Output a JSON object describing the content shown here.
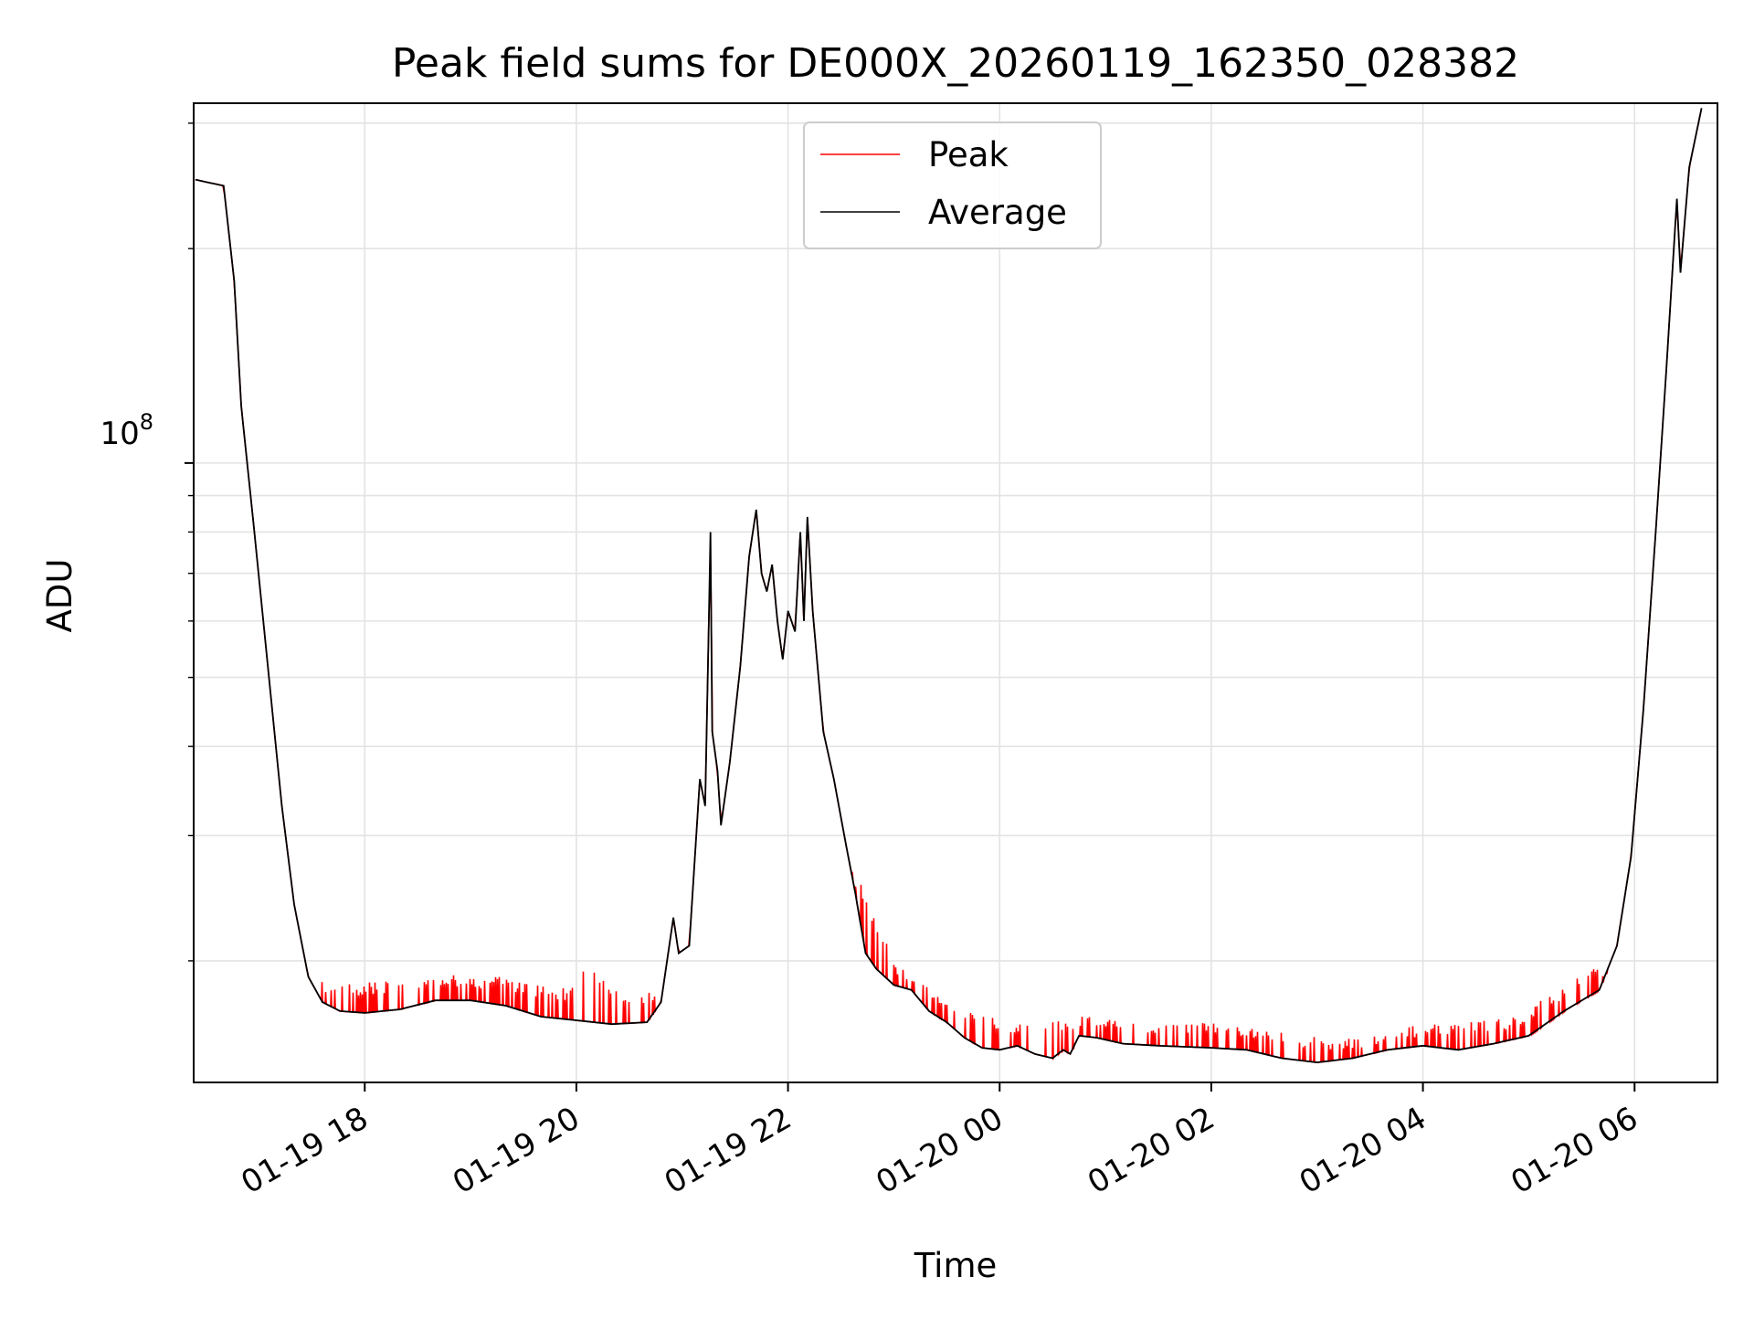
{
  "chart_data": {
    "type": "line",
    "title": "Peak field sums for DE000X_20260119_162350_028382",
    "xlabel": "Time",
    "ylabel": "ADU",
    "y_scale": "log",
    "ylim": [
      13500000,
      320000000
    ],
    "xlim": [
      "2026-01-19 16:23",
      "2026-01-20 06:47"
    ],
    "grid": true,
    "legend_position": "top-center",
    "x_ticks": [
      "2026-01-19 18:00",
      "2026-01-19 20:00",
      "2026-01-19 22:00",
      "2026-01-20 00:00",
      "2026-01-20 02:00",
      "2026-01-20 04:00",
      "2026-01-20 06:00"
    ],
    "x_tick_labels": [
      "01-19 18",
      "01-19 20",
      "01-19 22",
      "01-20 00",
      "01-20 02",
      "01-20 04",
      "01-20 06"
    ],
    "y_tick_label_base": "10",
    "y_tick_label_exp": "8",
    "series": [
      {
        "name": "Average",
        "color": "#000000",
        "points": [
          [
            "2026-01-19 16:24",
            250000000
          ],
          [
            "2026-01-19 16:30",
            248000000
          ],
          [
            "2026-01-19 16:37",
            246000000
          ],
          [
            "2026-01-19 16:40",
            245000000
          ],
          [
            "2026-01-19 16:46",
            180000000
          ],
          [
            "2026-01-19 16:50",
            120000000
          ],
          [
            "2026-01-19 16:57",
            82000000
          ],
          [
            "2026-01-19 17:05",
            52000000
          ],
          [
            "2026-01-19 17:13",
            33000000
          ],
          [
            "2026-01-19 17:20",
            24000000
          ],
          [
            "2026-01-19 17:28",
            19000000
          ],
          [
            "2026-01-19 17:36",
            17500000
          ],
          [
            "2026-01-19 17:46",
            17000000
          ],
          [
            "2026-01-19 18:00",
            16900000
          ],
          [
            "2026-01-19 18:20",
            17100000
          ],
          [
            "2026-01-19 18:40",
            17600000
          ],
          [
            "2026-01-19 19:00",
            17600000
          ],
          [
            "2026-01-19 19:20",
            17300000
          ],
          [
            "2026-01-19 19:40",
            16700000
          ],
          [
            "2026-01-19 20:00",
            16500000
          ],
          [
            "2026-01-19 20:20",
            16300000
          ],
          [
            "2026-01-19 20:40",
            16400000
          ],
          [
            "2026-01-19 20:48",
            17500000
          ],
          [
            "2026-01-19 20:55",
            23000000
          ],
          [
            "2026-01-19 20:58",
            20500000
          ],
          [
            "2026-01-19 21:04",
            21000000
          ],
          [
            "2026-01-19 21:10",
            36000000
          ],
          [
            "2026-01-19 21:13",
            33000000
          ],
          [
            "2026-01-19 21:15",
            58000000
          ],
          [
            "2026-01-19 21:16",
            80000000
          ],
          [
            "2026-01-19 21:17",
            42000000
          ],
          [
            "2026-01-19 21:20",
            37000000
          ],
          [
            "2026-01-19 21:22",
            31000000
          ],
          [
            "2026-01-19 21:27",
            38000000
          ],
          [
            "2026-01-19 21:33",
            52000000
          ],
          [
            "2026-01-19 21:38",
            74000000
          ],
          [
            "2026-01-19 21:42",
            86000000
          ],
          [
            "2026-01-19 21:45",
            70000000
          ],
          [
            "2026-01-19 21:48",
            66000000
          ],
          [
            "2026-01-19 21:51",
            72000000
          ],
          [
            "2026-01-19 21:54",
            60000000
          ],
          [
            "2026-01-19 21:57",
            53000000
          ],
          [
            "2026-01-19 22:00",
            62000000
          ],
          [
            "2026-01-19 22:04",
            58000000
          ],
          [
            "2026-01-19 22:07",
            80000000
          ],
          [
            "2026-01-19 22:09",
            60000000
          ],
          [
            "2026-01-19 22:11",
            84000000
          ],
          [
            "2026-01-19 22:14",
            62000000
          ],
          [
            "2026-01-19 22:20",
            42000000
          ],
          [
            "2026-01-19 22:26",
            36000000
          ],
          [
            "2026-01-19 22:33",
            29000000
          ],
          [
            "2026-01-19 22:38",
            25000000
          ],
          [
            "2026-01-19 22:44",
            20500000
          ],
          [
            "2026-01-19 22:50",
            19500000
          ],
          [
            "2026-01-19 23:00",
            18500000
          ],
          [
            "2026-01-19 23:10",
            18200000
          ],
          [
            "2026-01-19 23:20",
            17000000
          ],
          [
            "2026-01-19 23:30",
            16400000
          ],
          [
            "2026-01-19 23:40",
            15600000
          ],
          [
            "2026-01-19 23:50",
            15100000
          ],
          [
            "2026-01-20 00:00",
            15000000
          ],
          [
            "2026-01-20 00:10",
            15200000
          ],
          [
            "2026-01-20 00:20",
            14800000
          ],
          [
            "2026-01-20 00:30",
            14600000
          ],
          [
            "2026-01-20 00:36",
            15000000
          ],
          [
            "2026-01-20 00:40",
            14800000
          ],
          [
            "2026-01-20 00:45",
            15700000
          ],
          [
            "2026-01-20 00:55",
            15600000
          ],
          [
            "2026-01-20 01:10",
            15300000
          ],
          [
            "2026-01-20 01:30",
            15200000
          ],
          [
            "2026-01-20 02:00",
            15100000
          ],
          [
            "2026-01-20 02:20",
            15000000
          ],
          [
            "2026-01-20 02:40",
            14600000
          ],
          [
            "2026-01-20 03:00",
            14400000
          ],
          [
            "2026-01-20 03:20",
            14600000
          ],
          [
            "2026-01-20 03:40",
            15000000
          ],
          [
            "2026-01-20 04:00",
            15200000
          ],
          [
            "2026-01-20 04:20",
            15000000
          ],
          [
            "2026-01-20 04:40",
            15300000
          ],
          [
            "2026-01-20 05:00",
            15700000
          ],
          [
            "2026-01-20 05:20",
            17000000
          ],
          [
            "2026-01-20 05:40",
            18200000
          ],
          [
            "2026-01-20 05:50",
            21000000
          ],
          [
            "2026-01-20 05:58",
            28000000
          ],
          [
            "2026-01-20 06:05",
            45000000
          ],
          [
            "2026-01-20 06:12",
            80000000
          ],
          [
            "2026-01-20 06:18",
            135000000
          ],
          [
            "2026-01-20 06:24",
            235000000
          ],
          [
            "2026-01-20 06:26",
            185000000
          ],
          [
            "2026-01-20 06:31",
            260000000
          ],
          [
            "2026-01-20 06:38",
            315000000
          ]
        ]
      },
      {
        "name": "Peak",
        "color": "#ff0000",
        "spikes": [
          [
            "2026-01-19 17:40",
            18800000
          ],
          [
            "2026-01-19 17:55",
            18600000
          ],
          [
            "2026-01-19 18:10",
            18700000
          ],
          [
            "2026-01-19 18:30",
            19000000
          ],
          [
            "2026-01-19 18:45",
            19200000
          ],
          [
            "2026-01-19 19:00",
            19000000
          ],
          [
            "2026-01-19 19:15",
            19100000
          ],
          [
            "2026-01-19 19:35",
            18500000
          ],
          [
            "2026-01-19 19:55",
            18300000
          ],
          [
            "2026-01-19 20:06",
            19800000
          ],
          [
            "2026-01-19 20:25",
            18000000
          ],
          [
            "2026-01-19 20:45",
            18100000
          ],
          [
            "2026-01-19 22:40",
            26000000
          ],
          [
            "2026-01-19 23:00",
            20000000
          ],
          [
            "2026-01-19 23:20",
            18500000
          ],
          [
            "2026-01-19 23:45",
            16800000
          ],
          [
            "2026-01-20 00:15",
            16400000
          ],
          [
            "2026-01-20 00:50",
            16800000
          ],
          [
            "2026-01-20 01:20",
            16500000
          ],
          [
            "2026-01-20 01:50",
            16400000
          ],
          [
            "2026-01-20 02:20",
            16300000
          ],
          [
            "2026-01-20 02:50",
            15700000
          ],
          [
            "2026-01-20 03:20",
            15600000
          ],
          [
            "2026-01-20 03:50",
            16200000
          ],
          [
            "2026-01-20 04:20",
            16400000
          ],
          [
            "2026-01-20 04:50",
            16600000
          ],
          [
            "2026-01-20 05:10",
            17800000
          ],
          [
            "2026-01-20 05:35",
            19600000
          ]
        ]
      }
    ]
  }
}
